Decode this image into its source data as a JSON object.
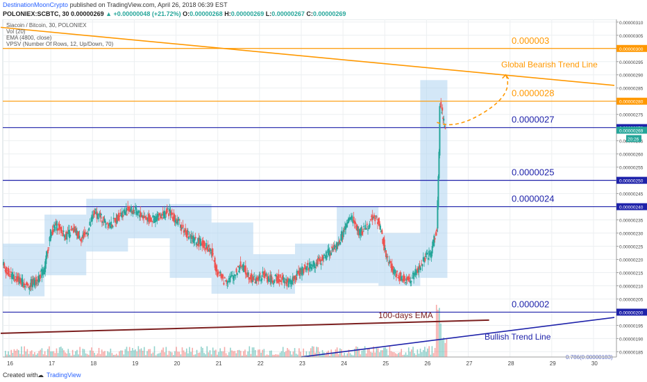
{
  "header": {
    "author": "DestinationMoonCrypto",
    "published": "published on TradingView.com, April 26, 2018 06:39 EST",
    "symbol": "POLONIEX:SCBTC, 30",
    "last": "0.00000269",
    "change": "▲ +0.00000048 (+21.72%)",
    "o_label": "O:",
    "o": "0.00000268",
    "h_label": "H:",
    "h": "0.00000269",
    "l_label": "L:",
    "l": "0.00000267",
    "c_label": "C:",
    "c": "0.00000269"
  },
  "indicators": [
    "Siacoin / Bitcoin, 30, POLONIEX",
    "Vol (20)",
    "EMA (4800, close)",
    "VPSV (Number Of Rows, 12, Up/Down, 70)"
  ],
  "footer": {
    "created": "Created with",
    "brand": "TradingView"
  },
  "colors": {
    "up": "#26a69a",
    "down": "#ef5350",
    "orange": "#ff9800",
    "blue": "#1e22aa",
    "vp_box": "#aed3f0",
    "ema": "#7b1e1e"
  },
  "chart_data": {
    "type": "candlestick",
    "y_ticks": [
      "0.00000310",
      "0.00000305",
      "0.00000300",
      "0.00000295",
      "0.00000290",
      "0.00000285",
      "0.00000280",
      "0.00000275",
      "0.00000270",
      "0.00000265",
      "0.00000260",
      "0.00000255",
      "0.00000250",
      "0.00000245",
      "0.00000240",
      "0.00000235",
      "0.00000230",
      "0.00000225",
      "0.00000220",
      "0.00000215",
      "0.00000210",
      "0.00000205",
      "0.00000200",
      "0.00000195",
      "0.00000190",
      "0.00000185"
    ],
    "ylim": [
      1.83e-06,
      3.11e-06
    ],
    "x_ticks": [
      "16",
      "17",
      "18",
      "19",
      "20",
      "21",
      "22",
      "23",
      "24",
      "25",
      "26",
      "27",
      "28",
      "29",
      "30"
    ],
    "current_price_label": "0.00000269",
    "countdown_label": "20:26",
    "horizontal_levels": [
      {
        "value": 3e-06,
        "text": "0.000003",
        "axis_label": "0.00000300",
        "color": "orange"
      },
      {
        "value": 2.8e-06,
        "text": "0.0000028",
        "axis_label": "0.00000280",
        "color": "orange"
      },
      {
        "value": 2.7e-06,
        "text": "0.0000027",
        "axis_label": "0.00000270",
        "color": "blue"
      },
      {
        "value": 2.5e-06,
        "text": "0.0000025",
        "axis_label": "0.00000250",
        "color": "blue"
      },
      {
        "value": 2.4e-06,
        "text": "0.0000024",
        "axis_label": "0.00000240",
        "color": "blue"
      },
      {
        "value": 2e-06,
        "text": "0.000002",
        "axis_label": "0.00000200",
        "color": "blue"
      }
    ],
    "trend_lines": [
      {
        "name": "Global Bearish Trend Line",
        "color": "orange",
        "from": {
          "day": 15.8,
          "value": 3.08e-06
        },
        "to": {
          "day": 30.5,
          "value": 2.86e-06
        }
      },
      {
        "name": "Bullish Trend Line",
        "color": "blue",
        "from": {
          "day": 23.0,
          "value": 1.83e-06
        },
        "to": {
          "day": 30.5,
          "value": 1.98e-06
        }
      }
    ],
    "ema": {
      "name": "100-days EMA",
      "from": {
        "day": 15.8,
        "value": 1.92e-06
      },
      "to": {
        "day": 27.5,
        "value": 1.97e-06
      }
    },
    "projection": {
      "points": [
        {
          "day": 26.25,
          "value": 2.72e-06
        },
        {
          "day": 26.7,
          "value": 2.69e-06
        },
        {
          "day": 27.4,
          "value": 2.76e-06
        },
        {
          "day": 27.9,
          "value": 2.9e-06
        }
      ]
    },
    "fib_label": "0.786(0.00000183)",
    "volume_profile_boxes": [
      {
        "day_start": 15.85,
        "day_end": 16.85,
        "low": 2.06e-06,
        "high": 2.26e-06
      },
      {
        "day_start": 16.85,
        "day_end": 17.85,
        "low": 2.14e-06,
        "high": 2.37e-06
      },
      {
        "day_start": 17.85,
        "day_end": 18.85,
        "low": 2.23e-06,
        "high": 2.43e-06
      },
      {
        "day_start": 18.85,
        "day_end": 19.85,
        "low": 2.28e-06,
        "high": 2.43e-06
      },
      {
        "day_start": 19.85,
        "day_end": 20.85,
        "low": 2.13e-06,
        "high": 2.41e-06
      },
      {
        "day_start": 20.85,
        "day_end": 21.85,
        "low": 2.07e-06,
        "high": 2.34e-06
      },
      {
        "day_start": 21.85,
        "day_end": 22.85,
        "low": 2.07e-06,
        "high": 2.22e-06
      },
      {
        "day_start": 22.85,
        "day_end": 23.85,
        "low": 2.11e-06,
        "high": 2.26e-06
      },
      {
        "day_start": 23.85,
        "day_end": 24.85,
        "low": 2.11e-06,
        "high": 2.4e-06
      },
      {
        "day_start": 24.85,
        "day_end": 25.85,
        "low": 2.1e-06,
        "high": 2.3e-06
      },
      {
        "day_start": 25.85,
        "day_end": 26.5,
        "low": 2.13e-06,
        "high": 2.88e-06
      }
    ],
    "price_path": [
      [
        15.85,
        2.18e-06
      ],
      [
        16.05,
        2.14e-06
      ],
      [
        16.25,
        2.12e-06
      ],
      [
        16.45,
        2.1e-06
      ],
      [
        16.65,
        2.12e-06
      ],
      [
        16.85,
        2.16e-06
      ],
      [
        17.0,
        2.3e-06
      ],
      [
        17.15,
        2.33e-06
      ],
      [
        17.35,
        2.29e-06
      ],
      [
        17.55,
        2.31e-06
      ],
      [
        17.75,
        2.28e-06
      ],
      [
        17.9,
        2.31e-06
      ],
      [
        18.05,
        2.38e-06
      ],
      [
        18.25,
        2.35e-06
      ],
      [
        18.45,
        2.33e-06
      ],
      [
        18.65,
        2.37e-06
      ],
      [
        18.85,
        2.39e-06
      ],
      [
        19.05,
        2.38e-06
      ],
      [
        19.25,
        2.36e-06
      ],
      [
        19.45,
        2.35e-06
      ],
      [
        19.65,
        2.37e-06
      ],
      [
        19.85,
        2.38e-06
      ],
      [
        20.05,
        2.34e-06
      ],
      [
        20.25,
        2.3e-06
      ],
      [
        20.45,
        2.27e-06
      ],
      [
        20.65,
        2.26e-06
      ],
      [
        20.85,
        2.23e-06
      ],
      [
        21.0,
        2.15e-06
      ],
      [
        21.15,
        2.12e-06
      ],
      [
        21.35,
        2.13e-06
      ],
      [
        21.55,
        2.18e-06
      ],
      [
        21.75,
        2.14e-06
      ],
      [
        21.9,
        2.12e-06
      ],
      [
        22.1,
        2.14e-06
      ],
      [
        22.3,
        2.12e-06
      ],
      [
        22.5,
        2.13e-06
      ],
      [
        22.7,
        2.11e-06
      ],
      [
        22.9,
        2.14e-06
      ],
      [
        23.1,
        2.17e-06
      ],
      [
        23.3,
        2.18e-06
      ],
      [
        23.5,
        2.2e-06
      ],
      [
        23.7,
        2.23e-06
      ],
      [
        23.9,
        2.26e-06
      ],
      [
        24.05,
        2.32e-06
      ],
      [
        24.2,
        2.36e-06
      ],
      [
        24.4,
        2.3e-06
      ],
      [
        24.6,
        2.33e-06
      ],
      [
        24.75,
        2.37e-06
      ],
      [
        24.9,
        2.32e-06
      ],
      [
        25.05,
        2.2e-06
      ],
      [
        25.2,
        2.16e-06
      ],
      [
        25.4,
        2.13e-06
      ],
      [
        25.6,
        2.12e-06
      ],
      [
        25.8,
        2.16e-06
      ],
      [
        25.95,
        2.2e-06
      ],
      [
        26.1,
        2.22e-06
      ],
      [
        26.25,
        2.32e-06
      ],
      [
        26.3,
        2.6e-06
      ],
      [
        26.33,
        2.78e-06
      ],
      [
        26.38,
        2.75e-06
      ],
      [
        26.45,
        2.69e-06
      ]
    ]
  }
}
